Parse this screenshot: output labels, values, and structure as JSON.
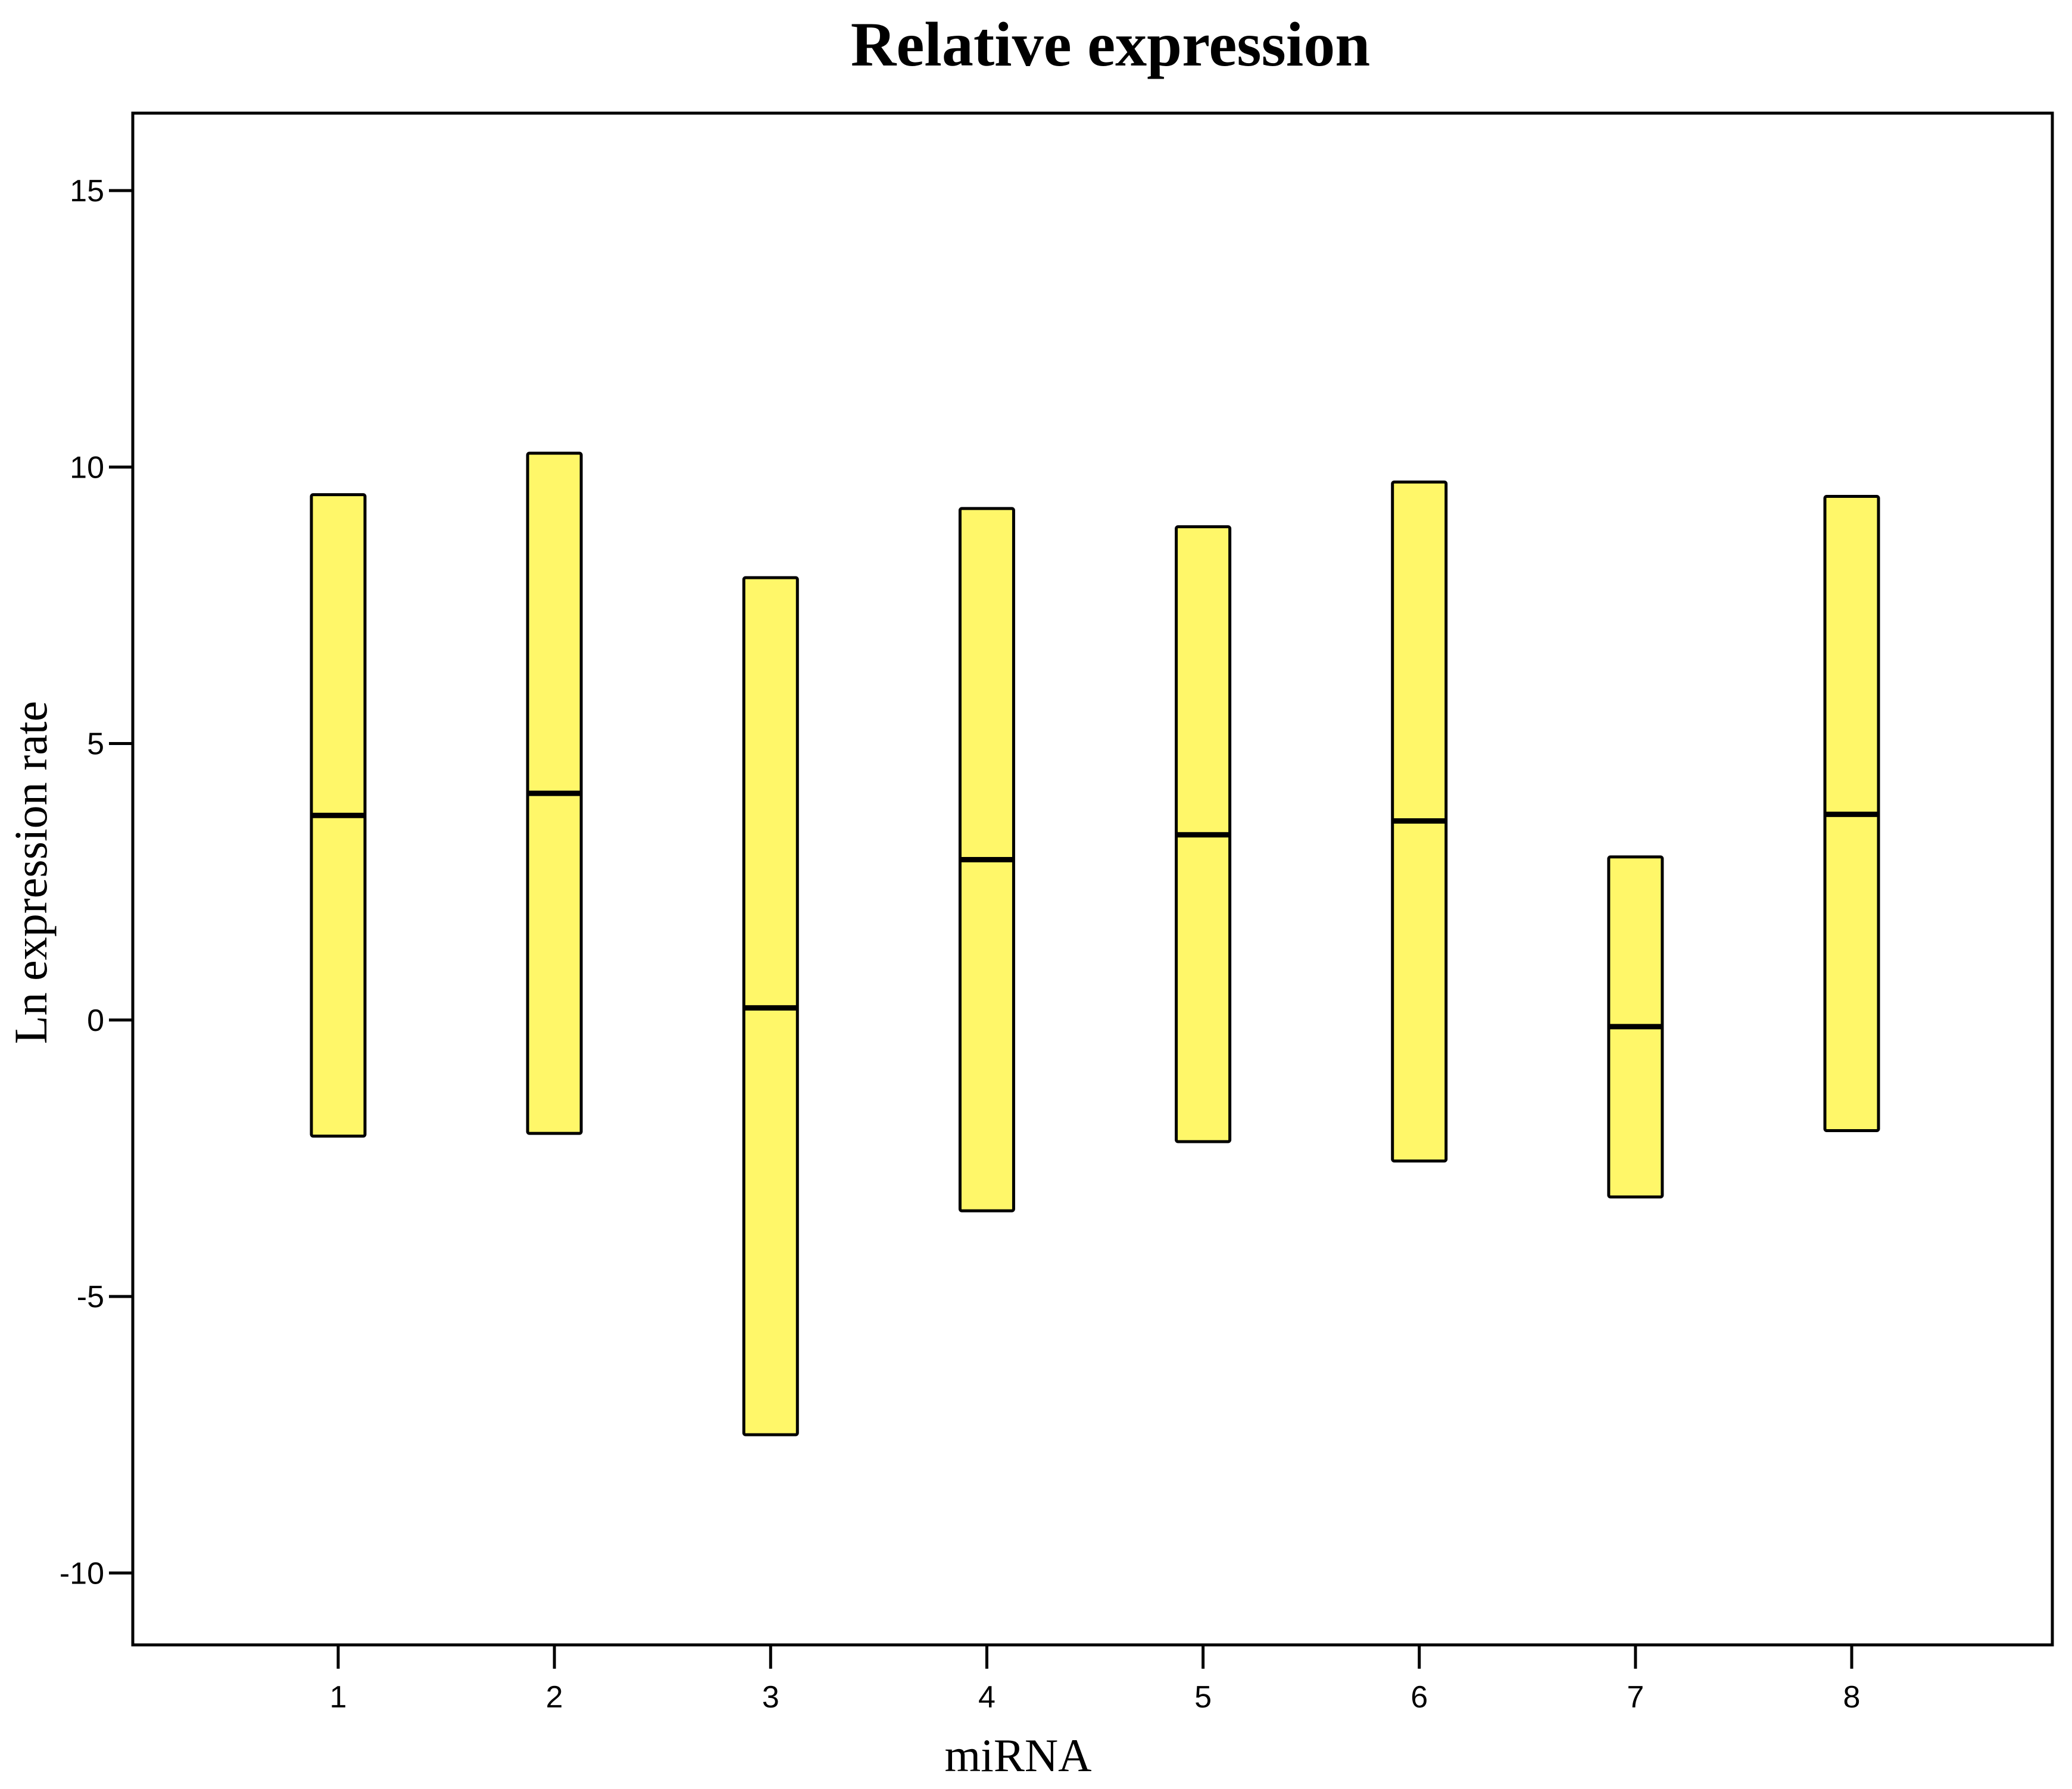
{
  "chart_data": {
    "type": "bar",
    "subtype": "floating-range-bars-with-center-line",
    "title": "Relative expression",
    "xlabel": "miRNA",
    "ylabel": "Ln expression rate",
    "categories": [
      "1",
      "2",
      "3",
      "4",
      "5",
      "6",
      "7",
      "8"
    ],
    "series": [
      {
        "low": [
          -2.1,
          -2.05,
          -7.5,
          -3.45,
          -2.2,
          -2.55,
          -3.2,
          -2.0
        ],
        "center": [
          3.7,
          4.1,
          0.22,
          2.9,
          3.35,
          3.6,
          -0.12,
          3.72
        ],
        "high": [
          9.5,
          10.25,
          8.0,
          9.25,
          8.92,
          9.73,
          2.95,
          9.47
        ]
      }
    ],
    "ylim": [
      -11.3,
      16.4
    ],
    "yticks": [
      15,
      10,
      5,
      0,
      -5,
      -10
    ],
    "ytick_labels": [
      "15",
      "10",
      "5",
      "0",
      "-5",
      "-10"
    ],
    "grid": false,
    "legend": false,
    "colors": {
      "bar_fill": "#fff769",
      "bar_stroke": "#000000",
      "axis": "#000000",
      "background": "#ffffff"
    }
  }
}
